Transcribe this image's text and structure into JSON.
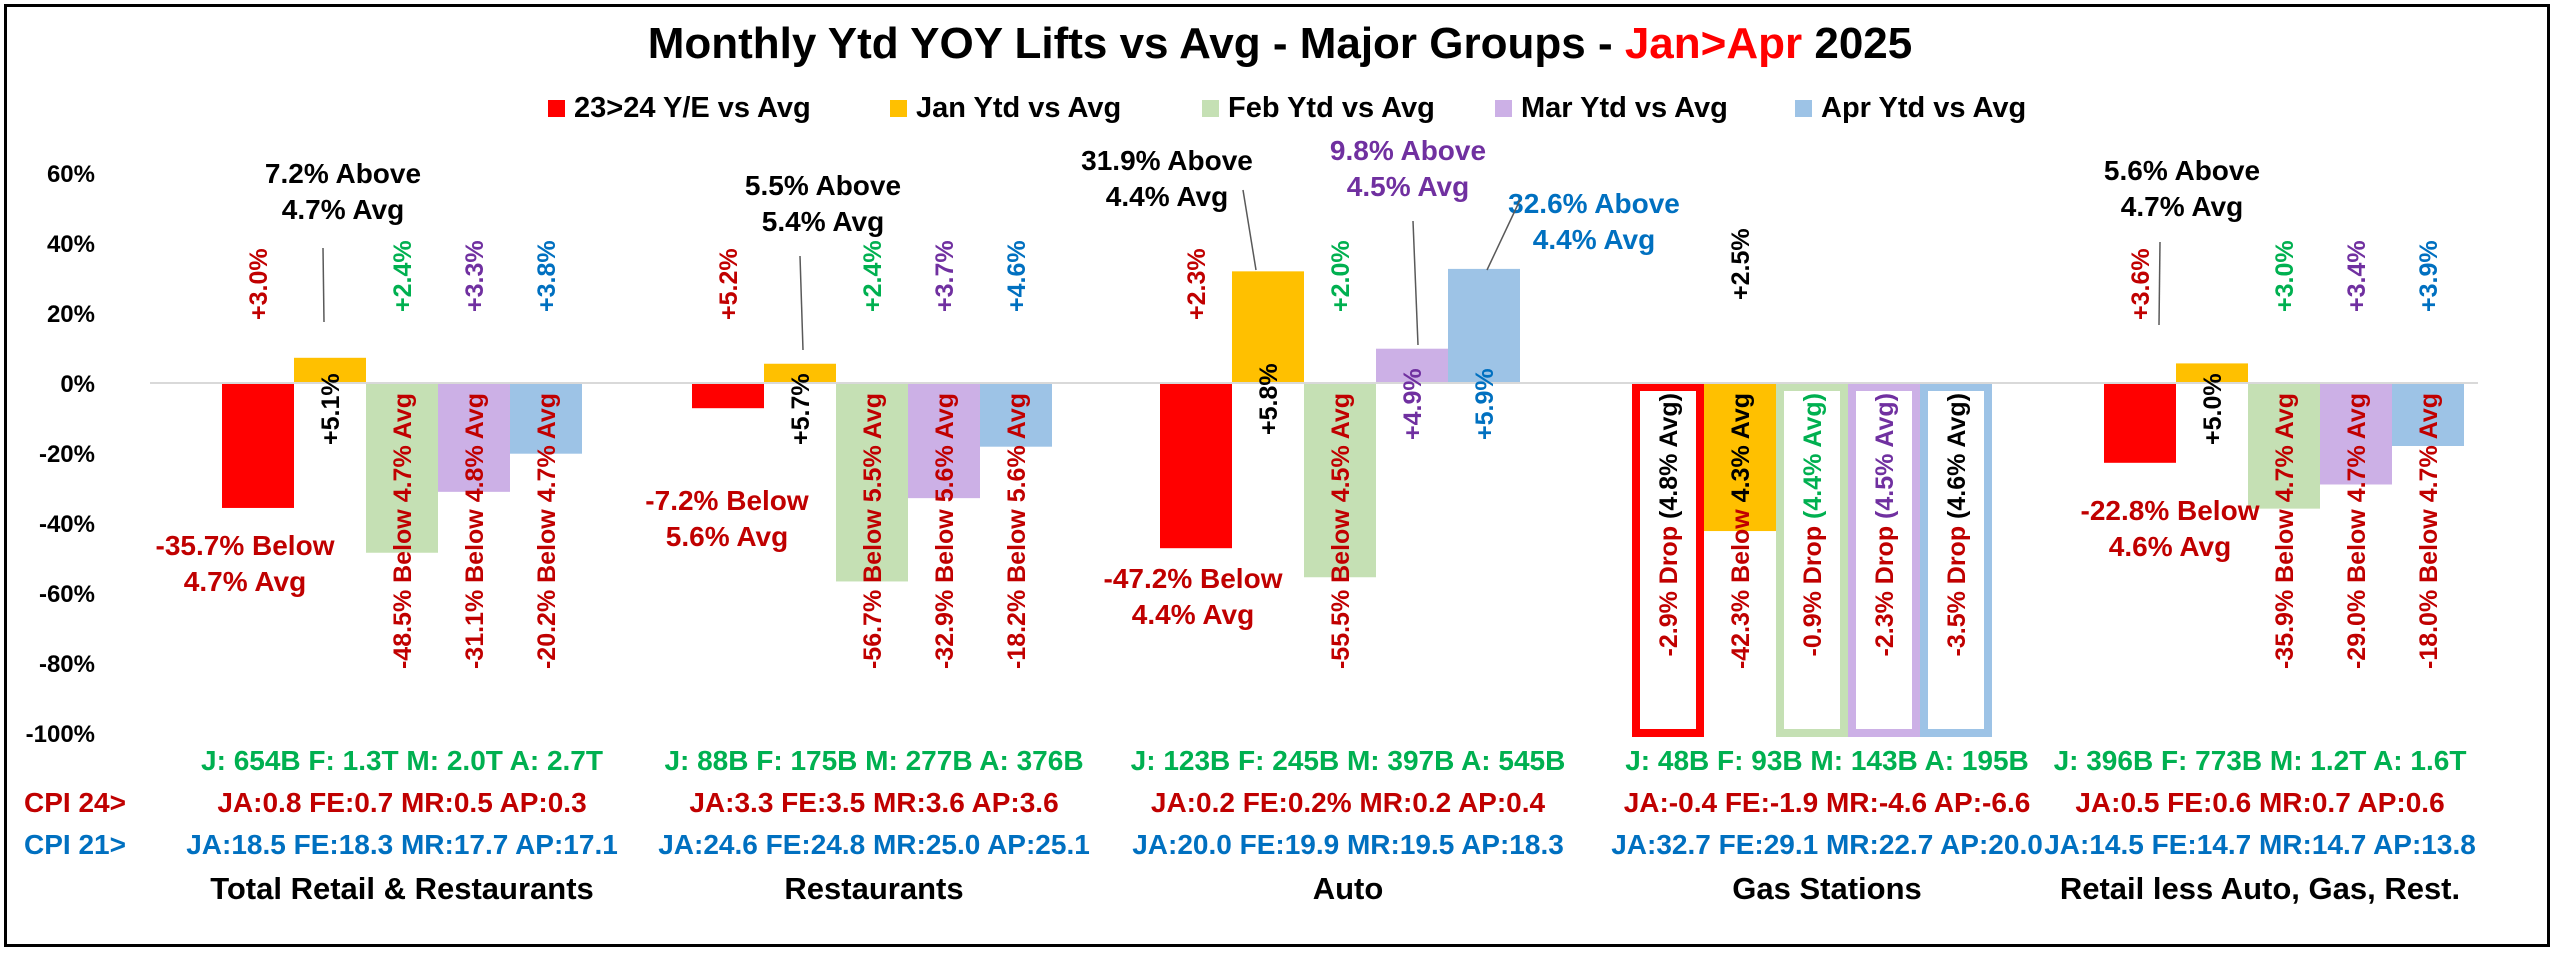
{
  "chart_data": {
    "type": "bar",
    "title": {
      "prefix": "Monthly Ytd YOY Lifts vs Avg - Major Groups - ",
      "highlight": "Jan>Apr",
      "suffix": " 2025",
      "highlight_color": "#FF0000"
    },
    "ylim": [
      -100,
      60
    ],
    "yticks": [
      "60%",
      "40%",
      "20%",
      "0%",
      "-20%",
      "-40%",
      "-60%",
      "-80%",
      "-100%"
    ],
    "yticks_values": [
      60,
      40,
      20,
      0,
      -20,
      -40,
      -60,
      -80,
      -100
    ],
    "legend_position": "top",
    "grid": false,
    "series": [
      {
        "name": "23>24 Y/E vs Avg",
        "color": "#FF0000",
        "text_color": "#C00000"
      },
      {
        "name": "Jan Ytd vs Avg",
        "color": "#FFC000",
        "text_color": "#000000"
      },
      {
        "name": "Feb Ytd vs Avg",
        "color": "#C5E0B4",
        "text_color": "#00B050"
      },
      {
        "name": "Mar Ytd vs Avg",
        "color": "#CCB0E6",
        "text_color": "#7030A0"
      },
      {
        "name": "Apr Ytd vs Avg",
        "color": "#9DC3E6",
        "text_color": "#0070C0"
      }
    ],
    "row_labels": {
      "cpi24": "CPI 24>",
      "cpi21": "CPI 21>"
    },
    "groups": [
      {
        "name": "Total Retail & Restaurants",
        "values": [
          -35.7,
          7.2,
          -48.5,
          -31.1,
          -20.2
        ],
        "lift_labels": [
          "+3.0%",
          "+5.1%",
          "+2.4%",
          "+3.3%",
          "+3.8%"
        ],
        "callouts": [
          {
            "series": 0,
            "lines": [
              "-35.7% Below",
              "4.7% Avg"
            ]
          },
          {
            "series": 1,
            "lines": [
              "7.2% Above",
              "4.7% Avg"
            ]
          }
        ],
        "vertical_labels": [
          "-48.5% Below 4.7% Avg",
          "-31.1% Below 4.8% Avg",
          "-20.2% Below 4.7% Avg"
        ],
        "sales": "J: 654B F: 1.3T M: 2.0T A: 2.7T",
        "cpi24": "JA:0.8 FE:0.7 MR:0.5 AP:0.3",
        "cpi21": "JA:18.5 FE:18.3 MR:17.7 AP:17.1"
      },
      {
        "name": "Restaurants",
        "values": [
          -7.2,
          5.5,
          -56.7,
          -32.9,
          -18.2
        ],
        "lift_labels": [
          "+5.2%",
          "+5.7%",
          "+2.4%",
          "+3.7%",
          "+4.6%"
        ],
        "callouts": [
          {
            "series": 0,
            "lines": [
              "-7.2% Below",
              "5.6% Avg"
            ]
          },
          {
            "series": 1,
            "lines": [
              "5.5% Above",
              "5.4% Avg"
            ]
          }
        ],
        "vertical_labels": [
          "-56.7% Below 5.5% Avg",
          "-32.9% Below 5.6% Avg",
          "-18.2% Below 5.6% Avg"
        ],
        "sales": "J: 88B F: 175B M: 277B A: 376B",
        "cpi24": "JA:3.3 FE:3.5 MR:3.6 AP:3.6",
        "cpi21": "JA:24.6 FE:24.8 MR:25.0 AP:25.1"
      },
      {
        "name": "Auto",
        "values": [
          -47.2,
          31.9,
          -55.5,
          9.8,
          32.6
        ],
        "lift_labels": [
          "+2.3%",
          "+5.8%",
          "+2.0%",
          "+4.9%",
          "+5.9%"
        ],
        "callouts": [
          {
            "series": 0,
            "lines": [
              "-47.2% Below",
              "4.4% Avg"
            ]
          },
          {
            "series": 1,
            "lines": [
              "31.9% Above",
              "4.4% Avg"
            ]
          },
          {
            "series": 3,
            "lines": [
              "9.8% Above",
              "4.5% Avg"
            ]
          },
          {
            "series": 4,
            "lines": [
              "32.6% Above",
              "4.4% Avg"
            ]
          }
        ],
        "vertical_labels": [
          "-55.5% Below 4.5% Avg"
        ],
        "sales": "J: 123B F: 245B M: 397B A: 545B",
        "cpi24": "JA:0.2 FE:0.2% MR:0.2 AP:0.4",
        "cpi21": "JA:20.0 FE:19.9 MR:19.5 AP:18.3"
      },
      {
        "name": "Gas Stations",
        "values": [
          -100,
          -42.3,
          -100,
          -100,
          -100
        ],
        "lift_labels": [
          "+2.5%"
        ],
        "vertical_labels": [
          {
            "series": 0,
            "parts": [
              "-2.9% Drop ",
              "(4.8% Avg)"
            ]
          },
          {
            "series": 1,
            "parts": [
              "-42.3% Below ",
              "4.3% Avg"
            ]
          },
          {
            "series": 2,
            "parts": [
              "-0.9% Drop ",
              "(4.4% Avg)"
            ]
          },
          {
            "series": 3,
            "parts": [
              "-2.3% Drop ",
              "(4.5% Avg)"
            ]
          },
          {
            "series": 4,
            "parts": [
              "-3.5% Drop ",
              "(4.6% Avg)"
            ]
          }
        ],
        "sales": "J: 48B F: 93B M: 143B A: 195B",
        "cpi24": "JA:-0.4 FE:-1.9 MR:-4.6 AP:-6.6",
        "cpi21": "JA:32.7 FE:29.1 MR:22.7 AP:20.0"
      },
      {
        "name": "Retail less Auto, Gas, Rest.",
        "values": [
          -22.8,
          5.6,
          -35.9,
          -29.0,
          -18.0
        ],
        "lift_labels": [
          "+3.6%",
          "+5.0%",
          "+3.0%",
          "+3.4%",
          "+3.9%"
        ],
        "callouts": [
          {
            "series": 0,
            "lines": [
              "-22.8% Below",
              "4.6% Avg"
            ]
          },
          {
            "series": 1,
            "lines": [
              "5.6% Above",
              "4.7% Avg"
            ]
          }
        ],
        "vertical_labels": [
          "-35.9% Below 4.7% Avg",
          "-29.0% Below 4.7% Avg",
          "-18.0% Below 4.7% Avg"
        ],
        "sales": "J: 396B F: 773B M: 1.2T A: 1.6T",
        "cpi24": "JA:0.5 FE:0.6 MR:0.7 AP:0.6",
        "cpi21": "JA:14.5 FE:14.7 MR:14.7 AP:13.8"
      }
    ],
    "text_colors": {
      "black": "#000000",
      "dark_red": "#C00000",
      "green": "#00B050",
      "purple": "#7030A0",
      "blue": "#0070C0"
    }
  }
}
